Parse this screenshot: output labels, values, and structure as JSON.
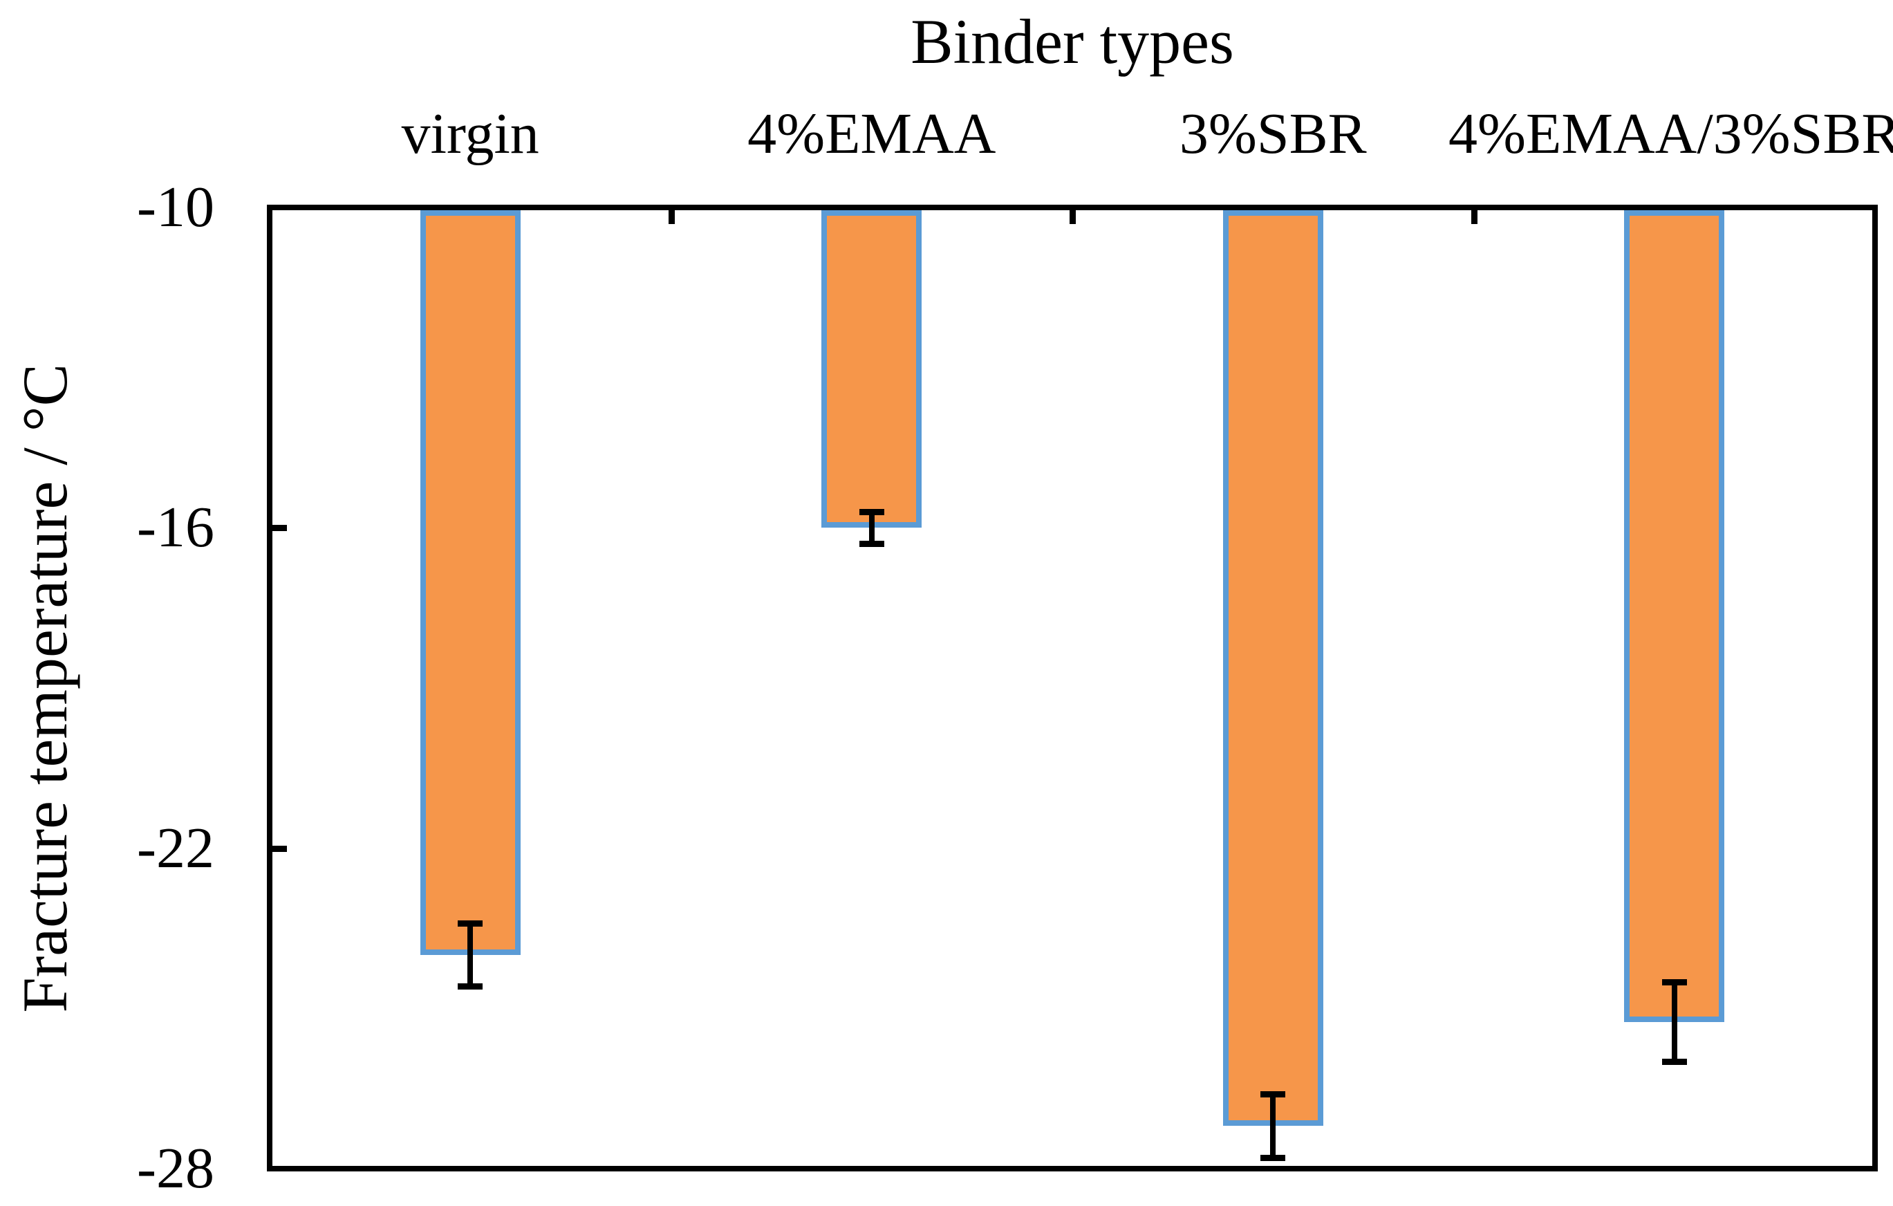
{
  "chart_data": {
    "type": "bar",
    "title": "Binder types",
    "ylabel": "Fracture temperature / °C",
    "xlabel": "",
    "categories": [
      "virgin",
      "4%EMAA",
      "3%SBR",
      "4%EMAA/3%SBR"
    ],
    "series": [
      {
        "name": "Fracture temperature",
        "values": [
          -24.0,
          -16.0,
          -27.2,
          -25.25
        ],
        "errors": [
          0.6,
          0.3,
          0.6,
          0.75
        ]
      }
    ],
    "ylim": [
      -28,
      -10
    ],
    "yticks": [
      -10,
      -16,
      -22,
      -28
    ],
    "grid": false,
    "legend": null,
    "bar_fill_color": "#F6964A",
    "bar_border_color": "#5B9BD5",
    "error_bar_color": "#000000",
    "axis_color": "#000000",
    "text_color": "#000000"
  }
}
